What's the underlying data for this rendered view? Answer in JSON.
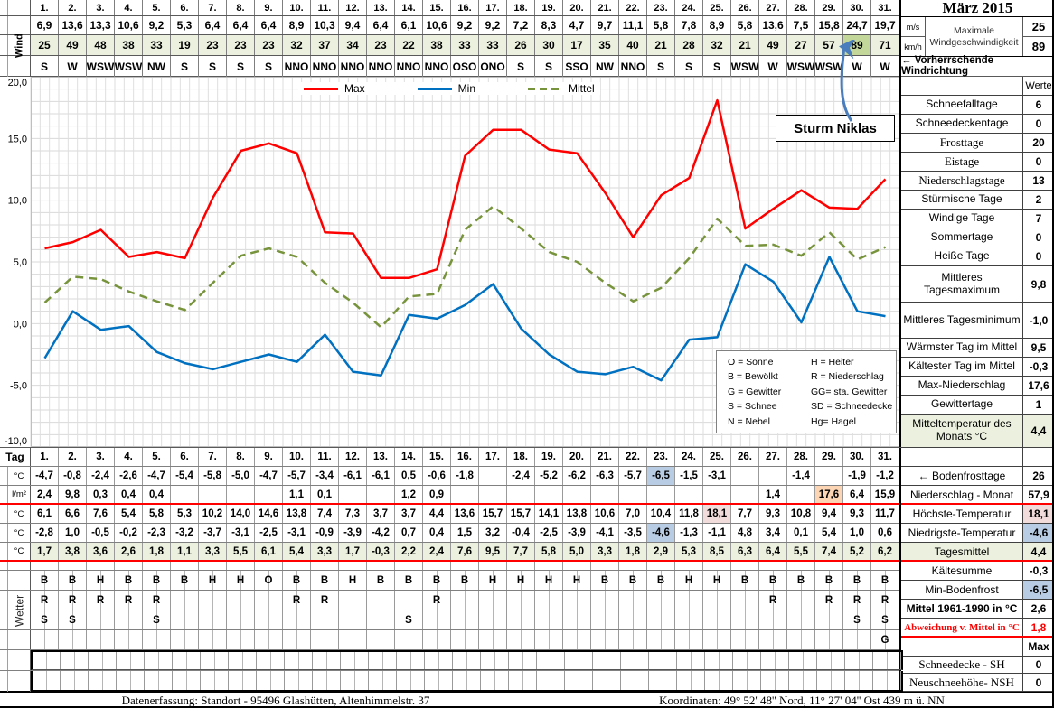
{
  "month_title": "März 2015",
  "days": [
    "1.",
    "2.",
    "3.",
    "4.",
    "5.",
    "6.",
    "7.",
    "8.",
    "9.",
    "10.",
    "11.",
    "12.",
    "13.",
    "14.",
    "15.",
    "16.",
    "17.",
    "18.",
    "19.",
    "20.",
    "21.",
    "22.",
    "23.",
    "24.",
    "25.",
    "26.",
    "27.",
    "28.",
    "29.",
    "30.",
    "31."
  ],
  "wind": {
    "label": "Wind",
    "unit_ms": "m/s",
    "unit_kmh": "km/h",
    "ms_values": [
      "6,9",
      "13,6",
      "13,3",
      "10,6",
      "9,2",
      "5,3",
      "6,4",
      "6,4",
      "6,4",
      "8,9",
      "10,3",
      "9,4",
      "6,4",
      "6,1",
      "10,6",
      "9,2",
      "9,2",
      "7,2",
      "8,3",
      "4,7",
      "9,7",
      "11,1",
      "5,8",
      "7,8",
      "8,9",
      "5,8",
      "13,6",
      "7,5",
      "15,8",
      "24,7",
      "19,7"
    ],
    "kmh_values": [
      "25",
      "49",
      "48",
      "38",
      "33",
      "19",
      "23",
      "23",
      "23",
      "32",
      "37",
      "34",
      "23",
      "22",
      "38",
      "33",
      "33",
      "26",
      "30",
      "17",
      "35",
      "40",
      "21",
      "28",
      "32",
      "21",
      "49",
      "27",
      "57",
      "89",
      "71"
    ],
    "directions": [
      "S",
      "W",
      "WSW",
      "WSW",
      "NW",
      "S",
      "S",
      "S",
      "S",
      "NNO",
      "NNO",
      "NNO",
      "NNO",
      "NNO",
      "NNO",
      "OSO",
      "ONO",
      "S",
      "S",
      "SSO",
      "NW",
      "NNO",
      "S",
      "S",
      "S",
      "WSW",
      "W",
      "WSW",
      "WSW",
      "W",
      "W"
    ],
    "max_label": "Maximale Windgeschwindigkeit",
    "max_ms": "25",
    "max_kmh": "89",
    "direction_note": "←  Vorherrschende Windrichtung",
    "highlight_index": 29
  },
  "chart_data": {
    "type": "line",
    "x": [
      1,
      2,
      3,
      4,
      5,
      6,
      7,
      8,
      9,
      10,
      11,
      12,
      13,
      14,
      15,
      16,
      17,
      18,
      19,
      20,
      21,
      22,
      23,
      24,
      25,
      26,
      27,
      28,
      29,
      30,
      31
    ],
    "series": [
      {
        "name": "Max",
        "color": "#FF0000",
        "style": "solid",
        "values": [
          6.1,
          6.6,
          7.6,
          5.4,
          5.8,
          5.3,
          10.2,
          14.0,
          14.6,
          13.8,
          7.4,
          7.3,
          3.7,
          3.7,
          4.4,
          13.6,
          15.7,
          15.7,
          14.1,
          13.8,
          10.6,
          7.0,
          10.4,
          11.8,
          18.1,
          7.7,
          9.3,
          10.8,
          9.4,
          9.3,
          11.7
        ]
      },
      {
        "name": "Min",
        "color": "#0070C0",
        "style": "solid",
        "values": [
          -2.8,
          1.0,
          -0.5,
          -0.2,
          -2.3,
          -3.2,
          -3.7,
          -3.1,
          -2.5,
          -3.1,
          -0.9,
          -3.9,
          -4.2,
          0.7,
          0.4,
          1.5,
          3.2,
          -0.4,
          -2.5,
          -3.9,
          -4.1,
          -3.5,
          -4.6,
          -1.3,
          -1.1,
          4.8,
          3.4,
          0.1,
          5.4,
          1.0,
          0.6
        ]
      },
      {
        "name": "Mittel",
        "color": "#77933C",
        "style": "dashed",
        "values": [
          1.7,
          3.8,
          3.6,
          2.6,
          1.8,
          1.1,
          3.3,
          5.5,
          6.1,
          5.4,
          3.3,
          1.7,
          -0.3,
          2.2,
          2.4,
          7.6,
          9.5,
          7.7,
          5.8,
          5.0,
          3.3,
          1.8,
          2.9,
          5.3,
          8.5,
          6.3,
          6.4,
          5.5,
          7.4,
          5.2,
          6.2
        ]
      }
    ],
    "ylim": [
      -10,
      20
    ],
    "ytick_values": [
      20,
      15,
      10,
      5,
      0,
      -5,
      -10
    ],
    "ytick_labels": [
      "20,0",
      "15,0",
      "10,0",
      "5,0",
      "0,0",
      "-5,0",
      "-10,0"
    ],
    "grid": true,
    "legend_position": "top",
    "annotation": "Sturm Niklas",
    "weather_legend": [
      [
        "O = Sonne",
        "H = Heiter"
      ],
      [
        "B = Bewölkt",
        "R = Niederschlag"
      ],
      [
        "G = Gewitter",
        "GG= sta. Gewitter"
      ],
      [
        "S = Schnee",
        "SD = Schneedecke"
      ],
      [
        "N = Nebel",
        "Hg= Hagel"
      ]
    ]
  },
  "stats_header": "Werte",
  "stats_rows": [
    {
      "label": "Schneefalltage",
      "value": "6"
    },
    {
      "label": "Schneedeckentage",
      "value": "0"
    },
    {
      "label": "Frosttage",
      "value": "20",
      "serif": true
    },
    {
      "label": "Eistage",
      "value": "0",
      "serif": true
    },
    {
      "label": "Niederschlagstage",
      "value": "13",
      "serif": true
    },
    {
      "label": "Stürmische Tage",
      "value": "2"
    },
    {
      "label": "Windige Tage",
      "value": "7"
    },
    {
      "label": "Sommertage",
      "value": "0"
    },
    {
      "label": "Heiße Tage",
      "value": "0"
    },
    {
      "label": "Mittleres Tagesmaximum",
      "value": "9,8",
      "tall": true
    },
    {
      "label": "Mittleres Tagesminimum",
      "value": "-1,0",
      "tall": true
    },
    {
      "label": "Wärmster Tag im Mittel",
      "value": "9,5"
    },
    {
      "label": "Kältester Tag im Mittel",
      "value": "-0,3"
    },
    {
      "label": "Max-Niederschlag",
      "value": "17,6"
    },
    {
      "label": "Gewittertage",
      "value": "1"
    },
    {
      "label": "Mitteltemperatur des Monats °C",
      "value": "4,4",
      "tall": true,
      "green": true
    }
  ],
  "table": {
    "tag_label": "Tag",
    "wetter_label": "Wetter",
    "rows": [
      {
        "unit": "°C",
        "name": "bodenfrost",
        "values": [
          "-4,7",
          "-0,8",
          "-2,4",
          "-2,6",
          "-4,7",
          "-5,4",
          "-5,8",
          "-5,0",
          "-4,7",
          "-5,7",
          "-3,4",
          "-6,1",
          "-6,1",
          "0,5",
          "-0,6",
          "-1,8",
          "",
          "-2,4",
          "-5,2",
          "-6,2",
          "-6,3",
          "-5,7",
          "-6,5",
          "-1,5",
          "-3,1",
          "",
          "",
          "-1,4",
          "",
          "-1,9",
          "-1,2"
        ],
        "hl": {
          "22": "blue"
        }
      },
      {
        "unit": "l/m²",
        "name": "niederschlag",
        "values": [
          "2,4",
          "9,8",
          "0,3",
          "0,4",
          "0,4",
          "",
          "",
          "",
          "",
          "1,1",
          "0,1",
          "",
          "",
          "1,2",
          "0,9",
          "",
          "",
          "",
          "",
          "",
          "",
          "",
          "",
          "",
          "",
          "",
          "1,4",
          "",
          "17,6",
          "6,4",
          "15,9"
        ],
        "hl": {
          "28": "orange"
        }
      },
      {
        "unit": "°C",
        "name": "hoechste-temperatur",
        "values": [
          "6,1",
          "6,6",
          "7,6",
          "5,4",
          "5,8",
          "5,3",
          "10,2",
          "14,0",
          "14,6",
          "13,8",
          "7,4",
          "7,3",
          "3,7",
          "3,7",
          "4,4",
          "13,6",
          "15,7",
          "15,7",
          "14,1",
          "13,8",
          "10,6",
          "7,0",
          "10,4",
          "11,8",
          "18,1",
          "7,7",
          "9,3",
          "10,8",
          "9,4",
          "9,3",
          "11,7"
        ],
        "hl": {
          "24": "pink"
        }
      },
      {
        "unit": "°C",
        "name": "niedrigste-temperatur",
        "values": [
          "-2,8",
          "1,0",
          "-0,5",
          "-0,2",
          "-2,3",
          "-3,2",
          "-3,7",
          "-3,1",
          "-2,5",
          "-3,1",
          "-0,9",
          "-3,9",
          "-4,2",
          "0,7",
          "0,4",
          "1,5",
          "3,2",
          "-0,4",
          "-2,5",
          "-3,9",
          "-4,1",
          "-3,5",
          "-4,6",
          "-1,3",
          "-1,1",
          "4,8",
          "3,4",
          "0,1",
          "5,4",
          "1,0",
          "0,6"
        ],
        "hl": {
          "22": "blue"
        }
      },
      {
        "unit": "°C",
        "name": "tagesmittel",
        "values": [
          "1,7",
          "3,8",
          "3,6",
          "2,6",
          "1,8",
          "1,1",
          "3,3",
          "5,5",
          "6,1",
          "5,4",
          "3,3",
          "1,7",
          "-0,3",
          "2,2",
          "2,4",
          "7,6",
          "9,5",
          "7,7",
          "5,8",
          "5,0",
          "3,3",
          "1,8",
          "2,9",
          "5,3",
          "8,5",
          "6,3",
          "6,4",
          "5,5",
          "7,4",
          "5,2",
          "6,2"
        ],
        "allGreen": true
      }
    ],
    "weather_rows": [
      [
        "B",
        "B",
        "H",
        "B",
        "B",
        "B",
        "H",
        "H",
        "O",
        "B",
        "B",
        "H",
        "B",
        "B",
        "B",
        "B",
        "H",
        "H",
        "H",
        "H",
        "B",
        "B",
        "B",
        "H",
        "H",
        "B",
        "B",
        "B",
        "B",
        "B",
        "B"
      ],
      [
        "R",
        "R",
        "R",
        "R",
        "R",
        "",
        "",
        "",
        "",
        "R",
        "R",
        "",
        "",
        "",
        "R",
        "",
        "",
        "",
        "",
        "",
        "",
        "",
        "",
        "",
        "",
        "",
        "R",
        "",
        "R",
        "R",
        "R"
      ],
      [
        "S",
        "S",
        "",
        "",
        "S",
        "",
        "",
        "",
        "",
        "",
        "",
        "",
        "",
        "S",
        "",
        "",
        "",
        "",
        "",
        "",
        "",
        "",
        "",
        "",
        "",
        "",
        "",
        "",
        "",
        "S",
        "S"
      ],
      [
        "",
        "",
        "",
        "",
        "",
        "",
        "",
        "",
        "",
        "",
        "",
        "",
        "",
        "",
        "",
        "",
        "",
        "",
        "",
        "",
        "",
        "",
        "",
        "",
        "",
        "",
        "",
        "",
        "",
        "",
        "G"
      ]
    ]
  },
  "sidebar2_rows": [
    {
      "label": "←  Bodenfrosttage",
      "value": "26"
    },
    {
      "label": "Niederschlag - Monat",
      "value": "57,9",
      "redline": true
    },
    {
      "label": "Höchste-Temperatur",
      "value": "18,1",
      "vcls": "pink"
    },
    {
      "label": "Niedrigste-Temperatur",
      "value": "-4,6",
      "vcls": "blue"
    },
    {
      "label": "Tagesmittel",
      "value": "4,4",
      "lcls": "green",
      "vcls": "green",
      "redline": true
    },
    {
      "label": "Kältesumme",
      "value": "-0,3"
    },
    {
      "label": "Min-Bodenfrost",
      "value": "-6,5",
      "vcls": "blue"
    },
    {
      "label": "Mittel 1961-1990 in °C",
      "value": "2,6",
      "bold": true
    },
    {
      "label": "Abweichung v. Mittel in °C",
      "value": "1,8",
      "red": true,
      "redbox": true,
      "smallserif": true
    },
    {
      "label": "",
      "value": "Max",
      "valbold": true,
      "noborder": true
    },
    {
      "label": "Schneedecke -   SH",
      "value": "0",
      "serif": true,
      "h": "h19"
    },
    {
      "label": "Neuschneehöhe- NSH",
      "value": "0",
      "serif": true,
      "h": "h20"
    }
  ],
  "footer": {
    "left": "Datenerfassung:  Standort -  95496  Glashütten, Altenhimmelstr. 37",
    "right": "Koordinaten:  49° 52' 48'' Nord,   11° 27' 04'' Ost   439 m ü. NN"
  }
}
